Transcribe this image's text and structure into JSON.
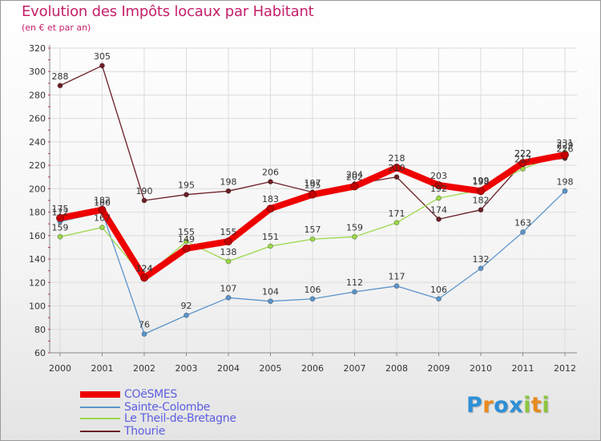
{
  "header": {
    "title": "Evolution des Impôts locaux par Habitant",
    "subtitle": "(en € et par an)"
  },
  "logo": {
    "text": "Proxiti",
    "letters": [
      {
        "ch": "P",
        "color": "#2e8fd6"
      },
      {
        "ch": "r",
        "color": "#e88a1c"
      },
      {
        "ch": "o",
        "color": "#2e8fd6"
      },
      {
        "ch": "x",
        "color": "#2e8fd6"
      },
      {
        "ch": "i",
        "color": "#8cc63f"
      },
      {
        "ch": "t",
        "color": "#e88a1c"
      },
      {
        "ch": "i",
        "color": "#8cc63f"
      }
    ]
  },
  "chart_data": {
    "type": "line",
    "title": "Evolution des Impôts locaux par Habitant",
    "subtitle": "(en € et par an)",
    "xlabel": "",
    "ylabel": "",
    "categories": [
      "2000",
      "2001",
      "2002",
      "2003",
      "2004",
      "2005",
      "2006",
      "2007",
      "2008",
      "2009",
      "2010",
      "2011",
      "2012"
    ],
    "ylim": [
      60,
      320
    ],
    "yticks": [
      60,
      80,
      100,
      120,
      140,
      160,
      180,
      200,
      220,
      240,
      260,
      280,
      300,
      320
    ],
    "grid": true,
    "legend_position": "bottom-left",
    "series": [
      {
        "name": "Thourie",
        "color": "#6b1f26",
        "values": [
          288,
          305,
          190,
          195,
          198,
          206,
          197,
          204,
          210,
          174,
          182,
          222,
          226
        ],
        "labels": [
          "288",
          "305",
          "190",
          "195",
          "198",
          "206",
          "197",
          "204",
          "210",
          "174",
          "182",
          "222",
          "226"
        ]
      },
      {
        "name": "Sainte-Colombe",
        "color": "#5b95cc",
        "values": [
          172,
          180,
          76,
          92,
          107,
          104,
          106,
          112,
          117,
          106,
          132,
          163,
          198
        ],
        "labels": [
          "172",
          "180",
          "76",
          "92",
          "107",
          "104",
          "106",
          "112",
          "117",
          "106",
          "132",
          "163",
          "198"
        ]
      },
      {
        "name": "Le Theil-de-Bretagne",
        "color": "#9bd84a",
        "values": [
          159,
          167,
          124,
          155,
          138,
          151,
          157,
          159,
          171,
          192,
          199,
          217,
          231
        ],
        "labels": [
          "159",
          "167",
          "124",
          "155",
          "138",
          "151",
          "157",
          "159",
          "171",
          "192",
          "199",
          "217",
          "231"
        ]
      },
      {
        "name": "COëSMES",
        "color": "#ee0000",
        "values": [
          175,
          182,
          124,
          149,
          155,
          183,
          195,
          202,
          218,
          203,
          198,
          222,
          229
        ],
        "labels": [
          "175",
          "182",
          "124",
          "149",
          "155",
          "183",
          "195",
          "202",
          "218",
          "203",
          "198",
          "222",
          "229"
        ]
      }
    ],
    "legend": [
      {
        "name": "COëSMES",
        "color": "#ee0000"
      },
      {
        "name": "Sainte-Colombe",
        "color": "#5b95cc"
      },
      {
        "name": "Le Theil-de-Bretagne",
        "color": "#9bd84a"
      },
      {
        "name": "Thourie",
        "color": "#6b1f26"
      }
    ]
  }
}
